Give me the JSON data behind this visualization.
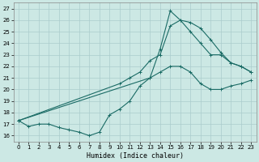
{
  "xlabel": "Humidex (Indice chaleur)",
  "xlim": [
    -0.5,
    23.5
  ],
  "ylim": [
    15.5,
    27.5
  ],
  "xticks": [
    0,
    1,
    2,
    3,
    4,
    5,
    6,
    7,
    8,
    9,
    10,
    11,
    12,
    13,
    14,
    15,
    16,
    17,
    18,
    19,
    20,
    21,
    22,
    23
  ],
  "yticks": [
    16,
    17,
    18,
    19,
    20,
    21,
    22,
    23,
    24,
    25,
    26,
    27
  ],
  "bg_color": "#cce8e4",
  "grid_color": "#aacccc",
  "line_color": "#1a6b65",
  "line1_x": [
    0,
    1,
    2,
    3,
    4,
    5,
    6,
    7,
    8,
    9,
    10,
    11,
    12,
    13,
    14,
    15,
    16,
    17,
    18,
    19,
    20,
    21,
    22,
    23
  ],
  "line1_y": [
    17.3,
    16.8,
    17.0,
    17.0,
    16.7,
    16.5,
    16.3,
    16.0,
    16.3,
    17.8,
    18.3,
    19.0,
    20.3,
    21.0,
    21.5,
    22.0,
    22.0,
    21.5,
    20.5,
    20.0,
    20.0,
    20.3,
    20.5,
    20.8
  ],
  "line2_x": [
    0,
    10,
    11,
    12,
    13,
    14,
    15,
    16,
    17,
    18,
    19,
    20,
    21,
    22,
    23
  ],
  "line2_y": [
    17.3,
    20.5,
    21.0,
    21.5,
    22.5,
    23.0,
    25.5,
    26.0,
    25.0,
    24.0,
    23.0,
    23.0,
    22.3,
    22.0,
    21.5
  ],
  "line3_x": [
    0,
    13,
    14,
    15,
    16,
    17,
    18,
    19,
    20,
    21,
    22,
    23
  ],
  "line3_y": [
    17.3,
    21.0,
    23.5,
    26.8,
    26.0,
    25.8,
    25.3,
    24.3,
    23.2,
    22.3,
    22.0,
    21.5
  ]
}
